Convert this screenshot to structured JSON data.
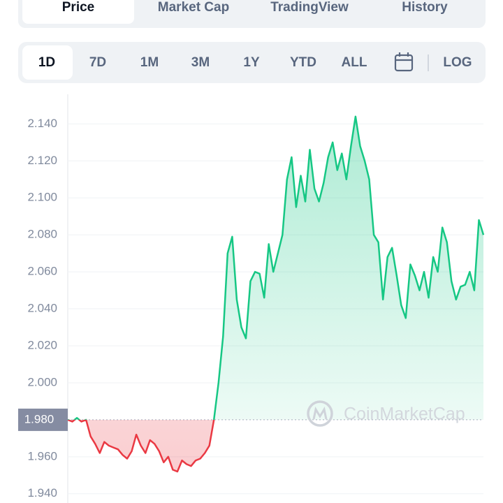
{
  "tabs": [
    "Price",
    "Market Cap",
    "TradingView",
    "History"
  ],
  "ranges": [
    "1D",
    "7D",
    "1M",
    "3M",
    "1Y",
    "YTD",
    "ALL"
  ],
  "log_toggle": "LOG",
  "watermark": "CoinMarketCap",
  "chart_data": {
    "type": "line",
    "ylim": [
      1.935,
      2.156
    ],
    "yticks": [
      {
        "value": 2.14,
        "label": "2.140"
      },
      {
        "value": 2.12,
        "label": "2.120"
      },
      {
        "value": 2.1,
        "label": "2.100"
      },
      {
        "value": 2.08,
        "label": "2.080"
      },
      {
        "value": 2.06,
        "label": "2.060"
      },
      {
        "value": 2.04,
        "label": "2.040"
      },
      {
        "value": 2.02,
        "label": "2.020"
      },
      {
        "value": 2.0,
        "label": "2.000"
      },
      {
        "value": 1.96,
        "label": "1.960"
      },
      {
        "value": 1.94,
        "label": "1.940"
      }
    ],
    "baseline": {
      "value": 1.98,
      "label": "1.980"
    },
    "grid": true,
    "up_color": "#16c784",
    "down_color": "#ea3943",
    "values": [
      1.98,
      1.979,
      1.981,
      1.979,
      1.98,
      1.971,
      1.967,
      1.962,
      1.968,
      1.966,
      1.965,
      1.964,
      1.961,
      1.959,
      1.963,
      1.972,
      1.966,
      1.962,
      1.969,
      1.967,
      1.963,
      1.957,
      1.96,
      1.953,
      1.952,
      1.958,
      1.956,
      1.955,
      1.958,
      1.959,
      1.962,
      1.966,
      1.98,
      2.0,
      2.025,
      2.07,
      2.079,
      2.045,
      2.03,
      2.024,
      2.055,
      2.06,
      2.059,
      2.046,
      2.075,
      2.06,
      2.07,
      2.08,
      2.11,
      2.122,
      2.095,
      2.112,
      2.098,
      2.126,
      2.105,
      2.098,
      2.108,
      2.122,
      2.13,
      2.115,
      2.124,
      2.11,
      2.128,
      2.144,
      2.128,
      2.12,
      2.11,
      2.08,
      2.076,
      2.045,
      2.068,
      2.073,
      2.058,
      2.042,
      2.035,
      2.064,
      2.058,
      2.05,
      2.06,
      2.046,
      2.068,
      2.06,
      2.084,
      2.076,
      2.055,
      2.045,
      2.052,
      2.053,
      2.06,
      2.05,
      2.088,
      2.08
    ]
  }
}
